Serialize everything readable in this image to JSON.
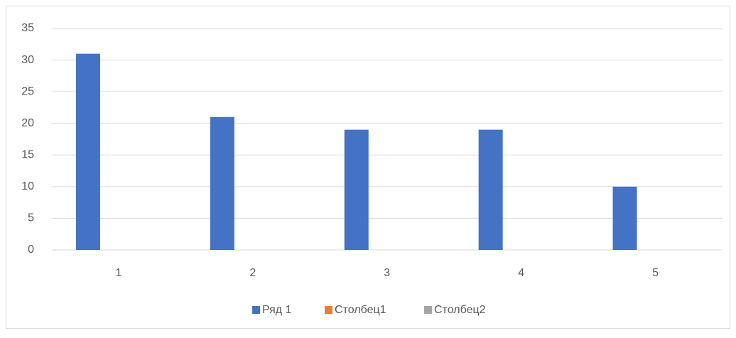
{
  "chart_data": {
    "type": "bar",
    "categories": [
      "1",
      "2",
      "3",
      "4",
      "5"
    ],
    "series": [
      {
        "name": "Ряд 1",
        "color": "#4472c4",
        "values": [
          31,
          21,
          19,
          19,
          10
        ]
      },
      {
        "name": "Столбец1",
        "color": "#ed7d31",
        "values": [
          null,
          null,
          null,
          null,
          null
        ]
      },
      {
        "name": "Столбец2",
        "color": "#a5a5a5",
        "values": [
          null,
          null,
          null,
          null,
          null
        ]
      }
    ],
    "ylim": [
      0,
      35
    ],
    "yticks": [
      0,
      5,
      10,
      15,
      20,
      25,
      30,
      35
    ],
    "grid": true,
    "legend": "bottom"
  }
}
